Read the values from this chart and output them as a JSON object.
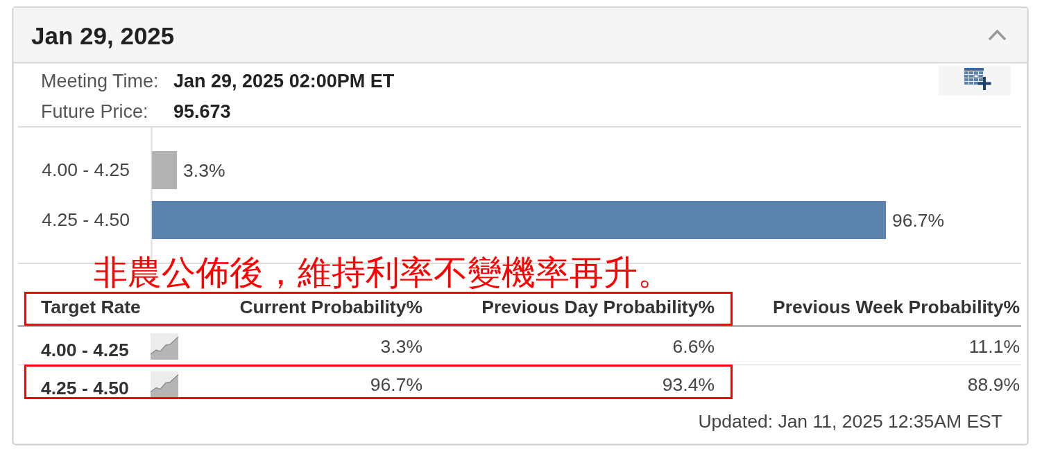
{
  "chart_data": [
    {
      "type": "other",
      "title": "Jan 29, 2025",
      "annotations": [
        "Meeting Time:",
        "Jan 29, 2025 02:00PM ET",
        "Future Price:",
        "95.673"
      ]
    },
    {
      "type": "bar",
      "orientation": "horizontal",
      "categories": [
        "4.00 - 4.25",
        "4.25 - 4.50"
      ],
      "values": [
        3.3,
        96.7
      ],
      "colors": [
        "#b2b2b2",
        "#5b83ae"
      ],
      "value_labels": [
        "3.3%",
        "96.7%"
      ]
    },
    {
      "type": "other",
      "annotations": [
        "非農公佈後，維持利率不變機率再升。",
        "Target Rate",
        "Current Probability%",
        "Previous Day Probability%",
        "Previous Week Probability%",
        "4.00 - 4.25",
        "3.3%",
        "6.6%",
        "11.1%",
        "4.25 - 4.50",
        "96.7%",
        "93.4%",
        "88.9%",
        "Updated: Jan 11, 2025 12:35AM EST"
      ]
    }
  ]
}
